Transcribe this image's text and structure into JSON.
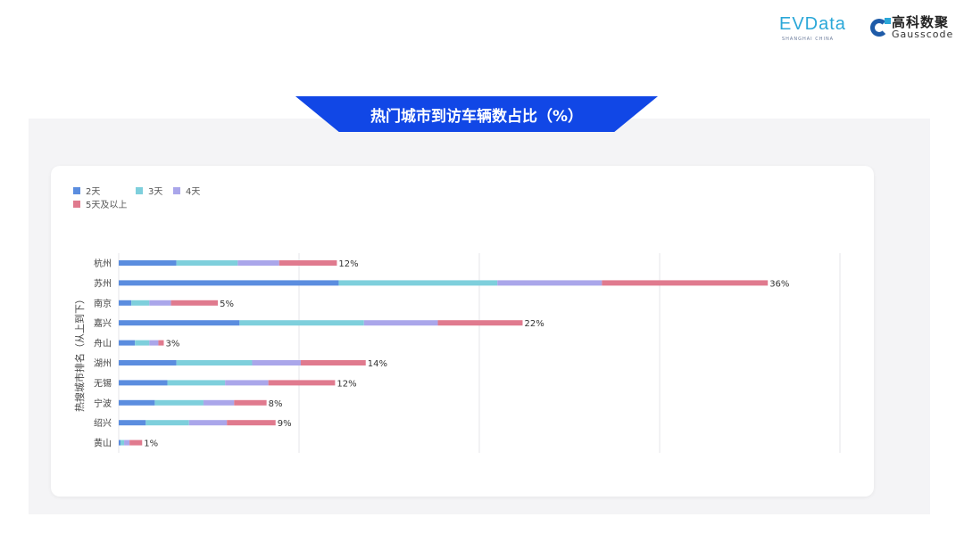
{
  "header": {
    "logo_evdata": "EVData",
    "logo_evdata_sub": "SHANGHAI CHINA",
    "logo_gauss_cn": "高科数聚",
    "logo_gauss_en": "Gausscode"
  },
  "title": "热门城市到访车辆数占比（%）",
  "chart_data": {
    "type": "bar",
    "orientation": "horizontal",
    "stacked": true,
    "ylabel": "热搜城市排名（从上到下）",
    "xlim": [
      0,
      40
    ],
    "grid": true,
    "legend_position": "top-left",
    "categories": [
      "杭州",
      "苏州",
      "南京",
      "嘉兴",
      "舟山",
      "湖州",
      "无锡",
      "宁波",
      "绍兴",
      "黄山"
    ],
    "series": [
      {
        "name": "2天",
        "color": "#5b8ddf",
        "values": [
          3.2,
          12.2,
          0.7,
          6.7,
          0.9,
          3.2,
          2.7,
          2.0,
          1.5,
          0.1
        ]
      },
      {
        "name": "3天",
        "color": "#7ecfdc",
        "values": [
          3.4,
          8.8,
          1.0,
          6.9,
          0.8,
          4.2,
          3.2,
          2.7,
          2.4,
          0.2
        ]
      },
      {
        "name": "4天",
        "color": "#aaa6ea",
        "values": [
          2.3,
          5.8,
          1.2,
          4.1,
          0.5,
          2.7,
          2.4,
          1.7,
          2.1,
          0.3
        ]
      },
      {
        "name": "5天及以上",
        "color": "#e07a8e",
        "values": [
          3.2,
          9.2,
          2.6,
          4.7,
          0.3,
          3.6,
          3.7,
          1.8,
          2.7,
          0.7
        ]
      }
    ],
    "total_labels": [
      "12%",
      "36%",
      "5%",
      "22%",
      "3%",
      "14%",
      "12%",
      "8%",
      "9%",
      "1%"
    ]
  }
}
